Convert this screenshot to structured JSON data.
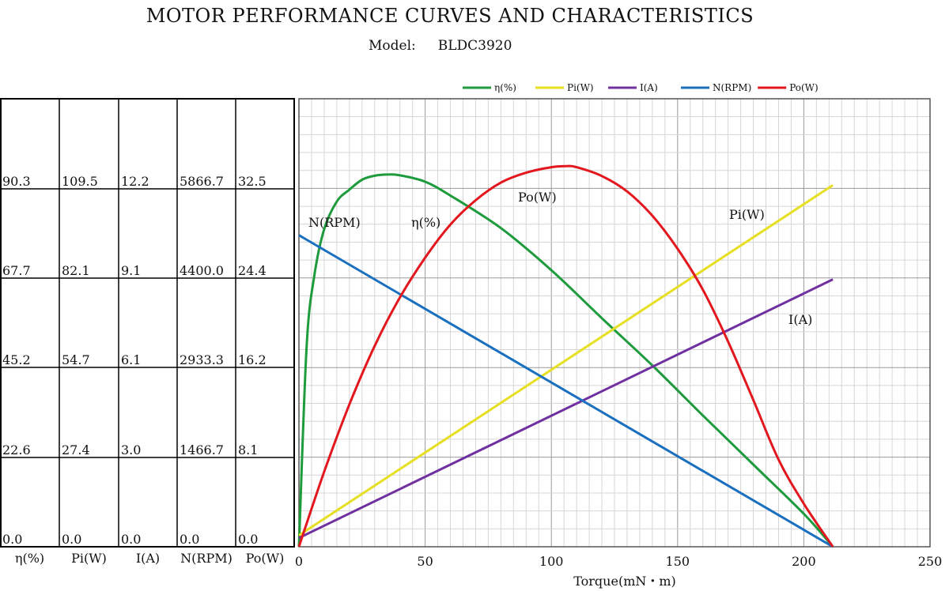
{
  "title": "MOTOR PERFORMANCE CURVES AND CHARACTERISTICS",
  "model_label": "Model:",
  "model_value": "BLDC3920",
  "table": {
    "headers": [
      "η(%)",
      "Pi(W)",
      "I(A)",
      "N(RPM)",
      "Po(W)"
    ],
    "rows": [
      [
        "90.3",
        "109.5",
        "12.2",
        "5866.7",
        "32.5"
      ],
      [
        "67.7",
        "82.1",
        "9.1",
        "4400.0",
        "24.4"
      ],
      [
        "45.2",
        "54.7",
        "6.1",
        "2933.3",
        "16.2"
      ],
      [
        "22.6",
        "27.4",
        "3.0",
        "1466.7",
        "8.1"
      ],
      [
        "0.0",
        "0.0",
        "0.0",
        "0.0",
        "0.0"
      ]
    ]
  },
  "chart_data": {
    "type": "line",
    "xlabel": "Torque(mN・m)",
    "xlim": [
      0,
      250
    ],
    "x_ticks": [
      "0",
      "50",
      "100",
      "150",
      "200",
      "250"
    ],
    "grid": true,
    "legend_position": "top-center",
    "series": [
      {
        "name": "η(%)",
        "color": "#1e9b3c",
        "axis": "eta",
        "axis_max": 112.9,
        "x": [
          0,
          3,
          6,
          10,
          15,
          20,
          25,
          30,
          35,
          40,
          50,
          60,
          80,
          100,
          120,
          140,
          160,
          180,
          200,
          211.5
        ],
        "y": [
          0,
          50,
          68,
          80,
          87,
          90,
          92.5,
          93.5,
          93.8,
          93.6,
          92,
          88.5,
          80.3,
          69.7,
          57.6,
          45.7,
          33.1,
          20.7,
          8.3,
          0
        ]
      },
      {
        "name": "Pi(W)",
        "color": "#e6df22",
        "axis": "pi",
        "axis_max": 136.9,
        "x": [
          0,
          211.5
        ],
        "y": [
          3.5,
          110.5
        ]
      },
      {
        "name": "I(A)",
        "color": "#7030a0",
        "axis": "i",
        "axis_max": 15.25,
        "x": [
          0,
          211.5
        ],
        "y": [
          0.3,
          9.1
        ]
      },
      {
        "name": "N(RPM)",
        "color": "#1a6fbf",
        "axis": "n",
        "axis_max": 7333.4,
        "x": [
          0,
          211.5
        ],
        "y": [
          5100,
          0
        ]
      },
      {
        "name": "Po(W)",
        "color": "#e3171e",
        "axis": "po",
        "axis_max": 40.6,
        "x": [
          0,
          10,
          20,
          30,
          40,
          50,
          60,
          70,
          80,
          90,
          100,
          106,
          110,
          120,
          130,
          140,
          150,
          160,
          170,
          180,
          190,
          200,
          211.5
        ],
        "y": [
          0,
          6.8,
          12.9,
          18.2,
          22.6,
          26.2,
          29.2,
          31.4,
          33,
          33.9,
          34.4,
          34.5,
          34.4,
          33.6,
          32.2,
          30,
          27,
          23.3,
          18.6,
          13.3,
          7.9,
          3.9,
          0
        ]
      }
    ],
    "annotations": [
      {
        "text": "N(RPM)",
        "series": "N(RPM)"
      },
      {
        "text": "η(%)",
        "series": "η(%)"
      },
      {
        "text": "Po(W)",
        "series": "Po(W)"
      },
      {
        "text": "Pi(W)",
        "series": "Pi(W)"
      },
      {
        "text": "I(A)",
        "series": "I(A)"
      }
    ]
  }
}
